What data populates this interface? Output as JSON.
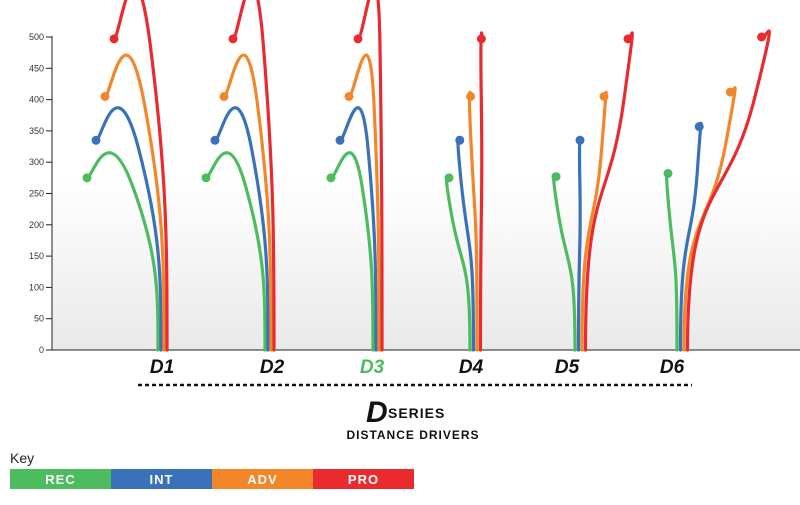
{
  "chart_data": {
    "type": "line",
    "title": "",
    "ylim": [
      0,
      500
    ],
    "yticks": [
      0,
      50,
      100,
      150,
      200,
      250,
      300,
      350,
      400,
      450,
      500
    ],
    "categories": [
      "D1",
      "D2",
      "D3",
      "D4",
      "D5",
      "D6"
    ],
    "highlight_category": "D3",
    "series": [
      {
        "name": "REC",
        "color": "#4cbc5e",
        "values": [
          275,
          275,
          275,
          275,
          277,
          282
        ]
      },
      {
        "name": "INT",
        "color": "#3a72b9",
        "values": [
          335,
          335,
          335,
          335,
          335,
          357
        ]
      },
      {
        "name": "ADV",
        "color": "#f4862a",
        "values": [
          405,
          405,
          405,
          405,
          405,
          412
        ]
      },
      {
        "name": "PRO",
        "color": "#e92a2e",
        "values": [
          497,
          497,
          497,
          497,
          497,
          500
        ]
      }
    ],
    "series_title": {
      "logo_letter": "D",
      "word": "SERIES",
      "subtitle": "DISTANCE DRIVERS"
    },
    "grid": false
  },
  "key": {
    "title": "Key",
    "items": [
      {
        "label": "REC",
        "color": "#4cbc5e"
      },
      {
        "label": "INT",
        "color": "#3a72b9"
      },
      {
        "label": "ADV",
        "color": "#f4862a"
      },
      {
        "label": "PRO",
        "color": "#e92a2e"
      }
    ]
  }
}
